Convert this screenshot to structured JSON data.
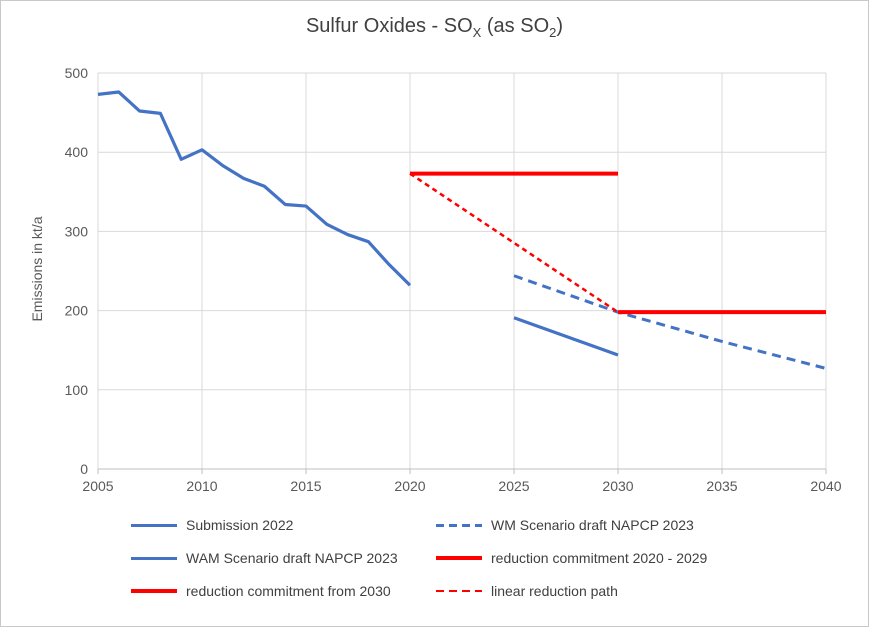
{
  "chart_title": {
    "pre": "Sulfur Oxides - SO",
    "sub1": "X",
    "mid": " (as SO",
    "sub2": "2",
    "post": ")"
  },
  "chart_data": {
    "type": "line",
    "title": "Sulfur Oxides - SOX (as SO2)",
    "xlabel": "",
    "ylabel": "Emissions in kt/a",
    "xlim": [
      2005,
      2040
    ],
    "ylim": [
      0,
      500
    ],
    "x_ticks": [
      2005,
      2010,
      2015,
      2020,
      2025,
      2030,
      2035,
      2040
    ],
    "y_ticks": [
      0,
      100,
      200,
      300,
      400,
      500
    ],
    "grid": true,
    "legend_position": "bottom",
    "colors": {
      "grid": "#D9D9D9",
      "axis": "#BFBFBF",
      "blue": "#4472C4",
      "red": "#FF0000"
    },
    "series": [
      {
        "id": "submission-2022",
        "name": "Submission 2022",
        "color": "#4472C4",
        "width": 3.2,
        "dash": "",
        "x": [
          2005,
          2006,
          2007,
          2008,
          2009,
          2010,
          2011,
          2012,
          2013,
          2014,
          2015,
          2016,
          2017,
          2018,
          2019,
          2020
        ],
        "values": [
          473,
          476,
          452,
          449,
          391,
          403,
          383,
          367,
          357,
          334,
          332,
          309,
          296,
          287,
          258,
          232
        ]
      },
      {
        "id": "wm-scenario-draft-napcp-2023",
        "name": "WM Scenario draft NAPCP 2023",
        "color": "#4472C4",
        "width": 3,
        "dash": "9 6",
        "x": [
          2025,
          2030,
          2035,
          2040
        ],
        "values": [
          244,
          198,
          161,
          127
        ]
      },
      {
        "id": "wam-scenario-draft-napcp-2023",
        "name": "WAM Scenario draft NAPCP 2023",
        "color": "#4472C4",
        "width": 3.2,
        "dash": "",
        "x": [
          2025,
          2030
        ],
        "values": [
          191,
          144
        ]
      },
      {
        "id": "linear-reduction-path",
        "name": "linear reduction path",
        "color": "#FF0000",
        "width": 2.5,
        "dash": "5 4",
        "x": [
          2020,
          2030
        ],
        "values": [
          373,
          198
        ]
      },
      {
        "id": "reduction-commitment-2020-2029",
        "name": "reduction commitment 2020 - 2029",
        "color": "#FF0000",
        "width": 4,
        "dash": "",
        "x": [
          2020,
          2030
        ],
        "values": [
          373,
          373
        ]
      },
      {
        "id": "reduction-commitment-from-2030",
        "name": "reduction commitment from 2030",
        "color": "#FF0000",
        "width": 4,
        "dash": "",
        "x": [
          2030,
          2040
        ],
        "values": [
          198,
          198
        ]
      }
    ],
    "legend": [
      {
        "label": "Submission 2022",
        "color": "#4472C4",
        "width": 3,
        "dash": false
      },
      {
        "label": "WM Scenario draft NAPCP 2023",
        "color": "#4472C4",
        "width": 3,
        "dash": true
      },
      {
        "label": "WAM Scenario draft NAPCP 2023",
        "color": "#4472C4",
        "width": 3,
        "dash": false
      },
      {
        "label": "reduction commitment 2020 - 2029",
        "color": "#FF0000",
        "width": 4,
        "dash": false
      },
      {
        "label": "reduction commitment from 2030",
        "color": "#FF0000",
        "width": 4,
        "dash": false
      },
      {
        "label": "linear reduction path",
        "color": "#FF0000",
        "width": 2.5,
        "dash": true
      }
    ]
  }
}
